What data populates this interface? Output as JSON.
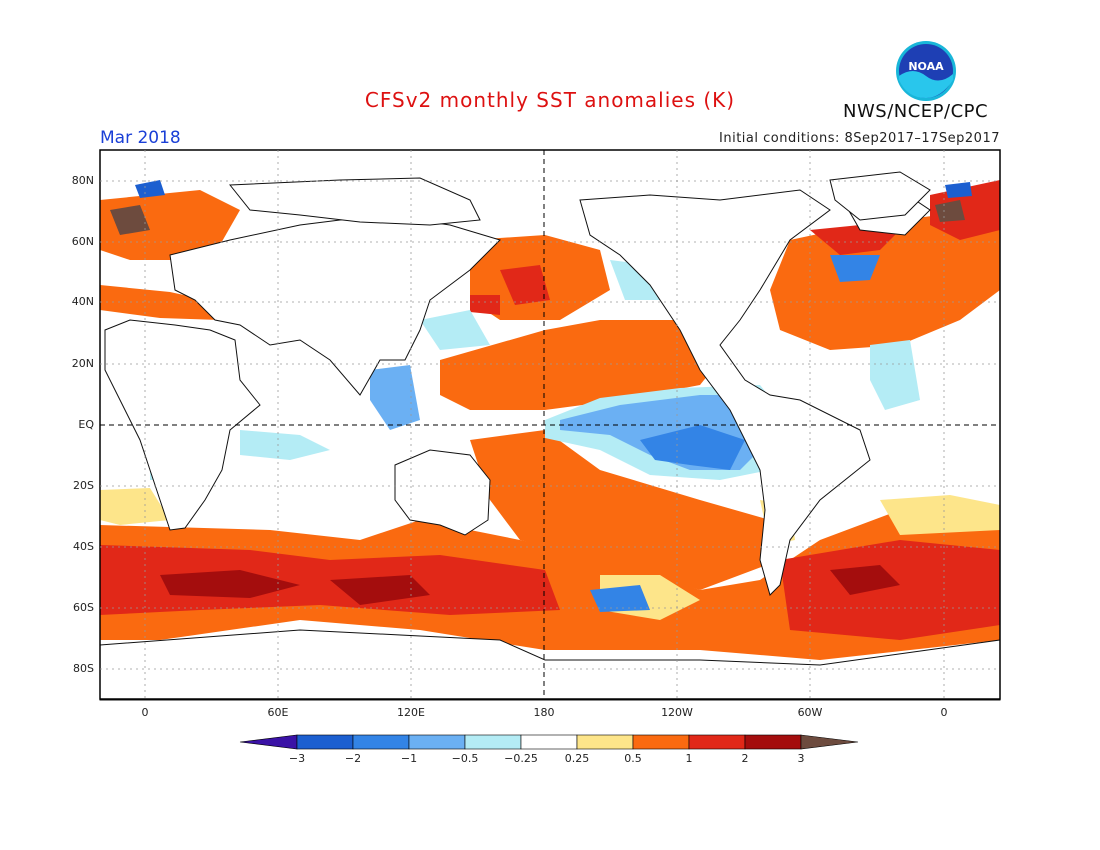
{
  "title": "CFSv2 monthly SST anomalies (K)",
  "valid_month": "Mar 2018",
  "initial_conditions": "Initial conditions: 8Sep2017–17Sep2017",
  "agency": "NWS/NCEP/CPC",
  "logo": {
    "icon": "noaa-logo",
    "text": "NOAA"
  },
  "lat_labels": [
    "80N",
    "60N",
    "40N",
    "20N",
    "EQ",
    "20S",
    "40S",
    "60S",
    "80S"
  ],
  "lon_labels": [
    "0",
    "60E",
    "120E",
    "180",
    "120W",
    "60W",
    "0"
  ],
  "colorbar": {
    "labels": [
      "−3",
      "−2",
      "−1",
      "−0.5",
      "−0.25",
      "0.25",
      "0.5",
      "1",
      "2",
      "3"
    ],
    "colors": [
      "#3a12a6",
      "#1c5fd0",
      "#3384e6",
      "#6bb0f3",
      "#b4ecf5",
      "#ffffff",
      "#fde58a",
      "#fa6a10",
      "#e12818",
      "#a40d0d",
      "#6d4b3e"
    ]
  }
}
